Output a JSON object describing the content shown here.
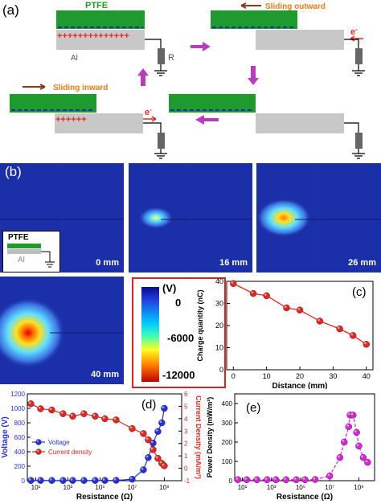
{
  "panel_a": {
    "label": "(a)",
    "ptfe": "PTFE",
    "al": "Al",
    "r": "R",
    "plus_long": "++++++++++++++",
    "plus_short": "++++++",
    "minus_long": "- - - - - - - - - - - - - - -",
    "sliding_outward": "Sliding outward",
    "sliding_inward": "Sliding inward",
    "electron": "e"
  },
  "panel_b": {
    "label": "(b)",
    "inset_ptfe": "PTFE",
    "inset_al": "Al",
    "tiles": [
      "0 mm",
      "16 mm",
      "26 mm",
      "40 mm"
    ],
    "colorbar_unit": "(V)",
    "colorbar_ticks": [
      "0",
      "-6000",
      "-12000"
    ]
  },
  "colors": {
    "ptfe_green": "#1e9a2e",
    "al_grey": "#c8c8c8",
    "field_blue": "#1a2fa8",
    "accent_red": "#e8251f",
    "voltage_blue": "#2430e0",
    "power_magenta": "#e020e0",
    "arrow_magenta": "#b83cc0"
  },
  "chart_data": [
    {
      "id": "c",
      "type": "line",
      "panel_label": "(c)",
      "xlabel": "Distance (mm)",
      "ylabel": "Charge quantity (nC)",
      "xlim": [
        -2,
        42
      ],
      "ylim": [
        0,
        40
      ],
      "xticks": [
        "0",
        "10",
        "20",
        "30",
        "40"
      ],
      "yticks": [
        "0",
        "10",
        "20",
        "30",
        "40"
      ],
      "series": [
        {
          "x": [
            0,
            6,
            10,
            16,
            20,
            26,
            32,
            36,
            40
          ],
          "values": [
            39,
            34.5,
            33.5,
            28,
            27,
            22,
            18.5,
            15.5,
            11.5
          ]
        }
      ]
    },
    {
      "id": "d",
      "type": "scatter",
      "panel_label": "(d)",
      "xlabel": "Resistance (Ω)",
      "ylabel": "Voltage (V)",
      "ylabel_right": "Current Density (mA/m²)",
      "xscale": "log",
      "xlim": [
        3,
        12000000000
      ],
      "ylim": [
        0,
        1200
      ],
      "ylim_right": [
        -1,
        6
      ],
      "xticks": [
        "10¹",
        "10³",
        "10⁵",
        "10⁷",
        "10⁹"
      ],
      "yticks": [
        "0",
        "200",
        "400",
        "600",
        "800",
        "1000",
        "1200"
      ],
      "yticks_right": [
        "-1",
        "0",
        "1",
        "2",
        "3",
        "4",
        "5",
        "6"
      ],
      "legend": [
        "Voltage",
        "Current density"
      ],
      "legend_position": "bottom-left",
      "series": [
        {
          "name": "Voltage",
          "axis": "left",
          "x": [
            5,
            20,
            100,
            500,
            2000,
            10000,
            50000,
            200000,
            1000000,
            10000000,
            50000000,
            100000000,
            200000000,
            400000000,
            700000000,
            1000000000
          ],
          "values": [
            3,
            3,
            3,
            3,
            3,
            3,
            3,
            3,
            5,
            20,
            150,
            320,
            520,
            680,
            800,
            1000
          ]
        },
        {
          "name": "Current density",
          "axis": "right",
          "x": [
            5,
            20,
            100,
            500,
            2000,
            10000,
            50000,
            200000,
            1000000,
            10000000,
            50000000,
            100000000,
            200000000,
            400000000,
            700000000,
            1000000000
          ],
          "values": [
            5.2,
            4.8,
            4.7,
            4.4,
            4.2,
            4.4,
            4.2,
            4.0,
            3.9,
            3.2,
            2.8,
            2.3,
            1.5,
            0.8,
            0.4,
            0.2
          ]
        }
      ]
    },
    {
      "id": "e",
      "type": "line",
      "panel_label": "(e)",
      "xlabel": "Resistance (Ω)",
      "ylabel": "Power Density (mW/m²)",
      "xscale": "log",
      "xlim": [
        3,
        12000000000
      ],
      "ylim": [
        0,
        450
      ],
      "xticks": [
        "10¹",
        "10³",
        "10⁵",
        "10⁷",
        "10⁹"
      ],
      "yticks": [
        "0",
        "100",
        "200",
        "300",
        "400"
      ],
      "series": [
        {
          "x": [
            5,
            20,
            100,
            500,
            2000,
            10000,
            50000,
            200000,
            1000000,
            10000000,
            50000000,
            100000000,
            200000000,
            250000000,
            400000000,
            700000000,
            1000000000,
            2000000000,
            4000000000
          ],
          "values": [
            5,
            5,
            5,
            5,
            5,
            5,
            5,
            5,
            6,
            25,
            120,
            200,
            280,
            340,
            340,
            250,
            180,
            120,
            95
          ]
        }
      ]
    }
  ]
}
